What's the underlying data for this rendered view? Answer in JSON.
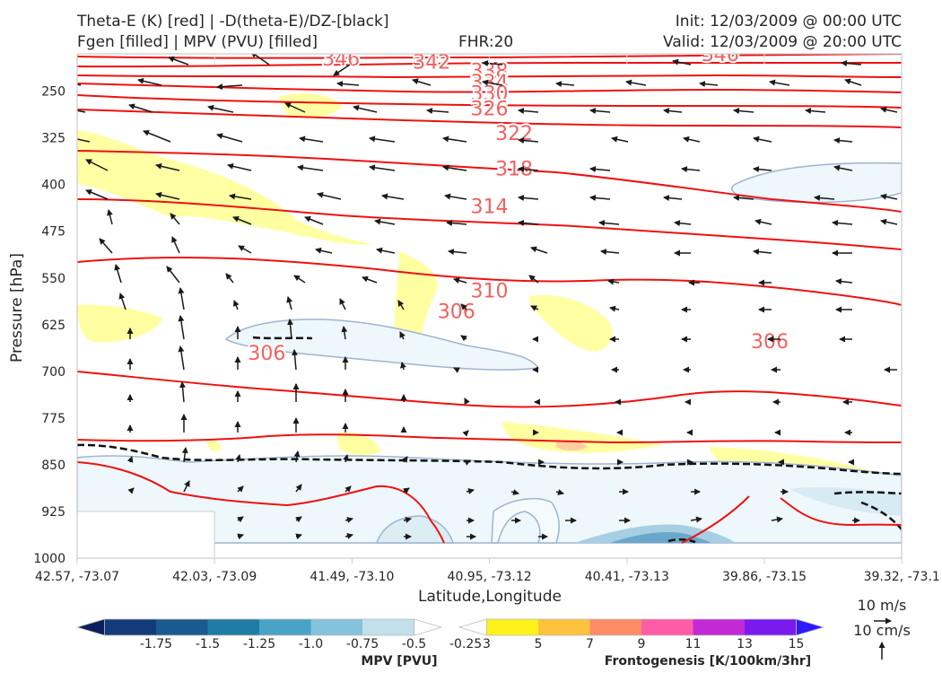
{
  "header": {
    "line1_left": "Theta-E (K) [red] | -D(theta-E)/DZ-[black]",
    "line2_left": "Fgen [filled] | MPV (PVU) [filled]",
    "fhr": "FHR:20",
    "init": "Init: 12/03/2009 @ 00:00 UTC",
    "valid": "Valid: 12/03/2009 @ 20:00 UTC"
  },
  "chart_data": {
    "type": "cross-section",
    "xlabel": "Latitude,Longitude",
    "ylabel": "Pressure [hPa]",
    "x_ticks": [
      "42.57, -73.07",
      "42.03, -73.09",
      "41.49, -73.10",
      "40.95, -73.12",
      "40.41, -73.13",
      "39.86, -73.15",
      "39.32, -73.1"
    ],
    "y_ticks": [
      250,
      325,
      400,
      475,
      550,
      625,
      700,
      775,
      850,
      925,
      1000
    ],
    "ylim": [
      1000,
      190
    ],
    "theta_e_labels": [
      {
        "value": "346",
        "x": 0.32,
        "p": 197
      },
      {
        "value": "346",
        "x": 0.78,
        "p": 190
      },
      {
        "value": "342",
        "x": 0.43,
        "p": 202
      },
      {
        "value": "338",
        "x": 0.5,
        "p": 217
      },
      {
        "value": "334",
        "x": 0.5,
        "p": 235
      },
      {
        "value": "330",
        "x": 0.5,
        "p": 253
      },
      {
        "value": "326",
        "x": 0.5,
        "p": 277
      },
      {
        "value": "322",
        "x": 0.53,
        "p": 317
      },
      {
        "value": "318",
        "x": 0.53,
        "p": 374
      },
      {
        "value": "314",
        "x": 0.5,
        "p": 434
      },
      {
        "value": "310",
        "x": 0.5,
        "p": 570
      },
      {
        "value": "306",
        "x": 0.46,
        "p": 603
      },
      {
        "value": "306",
        "x": 0.23,
        "p": 670
      },
      {
        "value": "306",
        "x": 0.84,
        "p": 651
      }
    ],
    "wind_legend": {
      "u": "10 m/s",
      "w": "10 cm/s"
    },
    "mpv_colorbar": {
      "label": "MPV [PVU]",
      "ticks": [
        "-1.75",
        "-1.5",
        "-1.25",
        "-1.0",
        "-0.75",
        "-0.5",
        "-0.25"
      ],
      "colors": [
        "#0b1f5e",
        "#133b7a",
        "#1a5a8f",
        "#1f7ca6",
        "#4aa3c7",
        "#86c2dc",
        "#c2e0ec",
        "#ffffff"
      ]
    },
    "fgen_colorbar": {
      "label": "Frontogenesis [K/100km/3hr]",
      "ticks": [
        "3",
        "5",
        "7",
        "9",
        "11",
        "13",
        "15"
      ],
      "colors": [
        "#ffffff",
        "#fff21a",
        "#ffc23d",
        "#ff8c66",
        "#ff5ca8",
        "#c22ad6",
        "#7a1aee",
        "#2d1aff"
      ]
    }
  }
}
